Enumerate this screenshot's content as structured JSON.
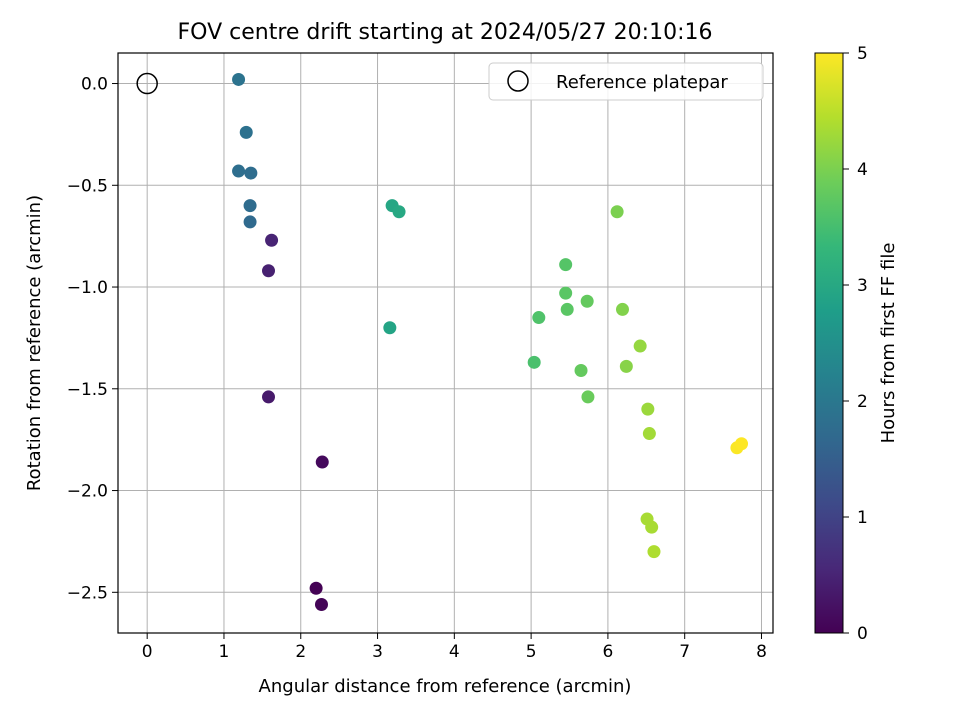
{
  "chart_data": {
    "type": "scatter",
    "title": "FOV centre drift starting at 2024/05/27 20:10:16",
    "xlabel": "Angular distance from reference (arcmin)",
    "ylabel": "Rotation from reference (arcmin)",
    "xlim": [
      -0.38,
      8.15
    ],
    "ylim": [
      -2.7,
      0.15
    ],
    "xticks": [
      0,
      1,
      2,
      3,
      4,
      5,
      6,
      7,
      8
    ],
    "xtick_labels": [
      "0",
      "1",
      "2",
      "3",
      "4",
      "5",
      "6",
      "7",
      "8"
    ],
    "yticks": [
      0.0,
      -0.5,
      -1.0,
      -1.5,
      -2.0,
      -2.5
    ],
    "ytick_labels": [
      "0.0",
      "−0.5",
      "−1.0",
      "−1.5",
      "−2.0",
      "−2.5"
    ],
    "grid": true,
    "legend": {
      "location": "upper right",
      "entries": [
        {
          "label": "Reference platepar",
          "marker": "open-circle"
        }
      ]
    },
    "reference_point": {
      "x": 0.0,
      "y": 0.0
    },
    "colorbar": {
      "label": "Hours from first FF file",
      "colormap": "viridis",
      "range": [
        0,
        5
      ],
      "ticks": [
        0,
        1,
        2,
        3,
        4,
        5
      ],
      "tick_labels": [
        "0",
        "1",
        "2",
        "3",
        "4",
        "5"
      ]
    },
    "points": [
      {
        "x": 2.2,
        "y": -2.48,
        "hours": 0.02
      },
      {
        "x": 2.27,
        "y": -2.56,
        "hours": 0.05
      },
      {
        "x": 2.28,
        "y": -1.86,
        "hours": 0.12
      },
      {
        "x": 1.58,
        "y": -1.54,
        "hours": 0.35
      },
      {
        "x": 1.58,
        "y": -0.92,
        "hours": 0.45
      },
      {
        "x": 1.62,
        "y": -0.77,
        "hours": 0.5
      },
      {
        "x": 1.34,
        "y": -0.68,
        "hours": 1.7
      },
      {
        "x": 1.34,
        "y": -0.6,
        "hours": 1.75
      },
      {
        "x": 1.35,
        "y": -0.44,
        "hours": 1.78
      },
      {
        "x": 1.19,
        "y": -0.43,
        "hours": 1.8
      },
      {
        "x": 1.29,
        "y": -0.24,
        "hours": 1.85
      },
      {
        "x": 1.19,
        "y": 0.02,
        "hours": 1.9
      },
      {
        "x": 3.16,
        "y": -1.2,
        "hours": 2.9
      },
      {
        "x": 3.19,
        "y": -0.6,
        "hours": 2.95
      },
      {
        "x": 3.28,
        "y": -0.63,
        "hours": 3.0
      },
      {
        "x": 5.04,
        "y": -1.37,
        "hours": 3.55
      },
      {
        "x": 5.1,
        "y": -1.15,
        "hours": 3.6
      },
      {
        "x": 5.45,
        "y": -0.89,
        "hours": 3.65
      },
      {
        "x": 5.45,
        "y": -1.03,
        "hours": 3.7
      },
      {
        "x": 5.47,
        "y": -1.11,
        "hours": 3.7
      },
      {
        "x": 5.65,
        "y": -1.41,
        "hours": 3.8
      },
      {
        "x": 5.73,
        "y": -1.07,
        "hours": 3.8
      },
      {
        "x": 5.74,
        "y": -1.54,
        "hours": 3.85
      },
      {
        "x": 6.12,
        "y": -0.63,
        "hours": 4.0
      },
      {
        "x": 6.19,
        "y": -1.11,
        "hours": 4.05
      },
      {
        "x": 6.24,
        "y": -1.39,
        "hours": 4.1
      },
      {
        "x": 6.42,
        "y": -1.29,
        "hours": 4.2
      },
      {
        "x": 6.52,
        "y": -1.6,
        "hours": 4.25
      },
      {
        "x": 6.54,
        "y": -1.72,
        "hours": 4.3
      },
      {
        "x": 6.51,
        "y": -2.14,
        "hours": 4.35
      },
      {
        "x": 6.57,
        "y": -2.18,
        "hours": 4.35
      },
      {
        "x": 6.6,
        "y": -2.3,
        "hours": 4.4
      },
      {
        "x": 7.68,
        "y": -1.79,
        "hours": 4.98
      },
      {
        "x": 7.74,
        "y": -1.77,
        "hours": 5.0
      }
    ]
  }
}
